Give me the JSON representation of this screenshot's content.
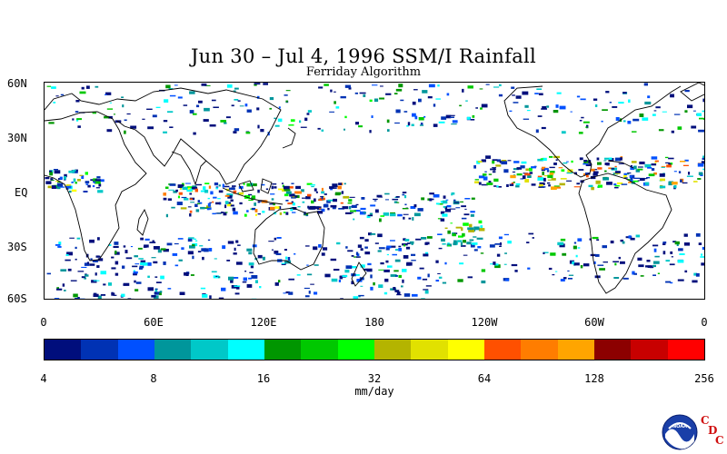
{
  "title": "Jun 30 – Jul 4, 1996 SSM/I Rainfall",
  "subtitle": "Ferriday Algorithm",
  "map": {
    "lat_labels": [
      "60N",
      "30N",
      "EQ",
      "30S",
      "60S"
    ],
    "lon_labels": [
      "0",
      "60E",
      "120E",
      "180",
      "120W",
      "60W",
      "0"
    ]
  },
  "colorbar": {
    "colors": [
      "#000e7c",
      "#0032b4",
      "#0050ff",
      "#00969b",
      "#00c8c8",
      "#00ffff",
      "#009600",
      "#00c800",
      "#00ff00",
      "#b4b400",
      "#e1e100",
      "#ffff00",
      "#ff5000",
      "#ff7d00",
      "#ffa500",
      "#8c0000",
      "#c80000",
      "#ff0000"
    ],
    "tick_labels": [
      "4",
      "8",
      "16",
      "32",
      "64",
      "128",
      "256"
    ],
    "units": "mm/day"
  },
  "logo": {
    "text": "NOAA",
    "cdc_letters": [
      "C",
      "D",
      "C"
    ]
  }
}
